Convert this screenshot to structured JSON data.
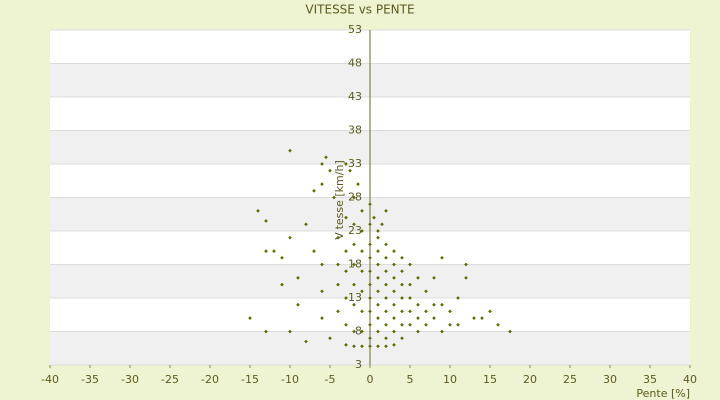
{
  "chart_data": {
    "type": "scatter",
    "title": "VITESSE vs PENTE",
    "x_label": "Pente [%]",
    "y_label": "Vitesse [km/h]",
    "color": "#5f6b00",
    "grid": true,
    "xlim": [
      -40,
      40
    ],
    "xticks": [
      -40,
      -35,
      -30,
      -25,
      -20,
      -15,
      -10,
      -5,
      0,
      5,
      10,
      15,
      20,
      25,
      30,
      35,
      40
    ],
    "ylim": [
      3,
      53
    ],
    "yticks": [
      3,
      8,
      13,
      18,
      23,
      28,
      33,
      38,
      43,
      48,
      53
    ],
    "series": [
      {
        "name": "Vitesse",
        "x": [
          -14,
          -13,
          -10,
          -13,
          -10,
          -8,
          -12,
          -11,
          -11,
          -9,
          -8,
          -7,
          -6,
          -5.5,
          -5,
          -6,
          -4.5,
          -3,
          -2.5,
          -1.5,
          -2,
          -1,
          0,
          0.5,
          1,
          1.5,
          2,
          -7,
          -6,
          -6,
          -6,
          -5,
          -4,
          -4,
          -4,
          -4,
          -3,
          -3,
          -3,
          -3,
          -3,
          -3,
          -2,
          -2,
          -2,
          -2,
          -2,
          -2,
          -2,
          -1,
          -1,
          -1,
          -1,
          -1,
          -1,
          -1,
          0,
          0,
          0,
          0,
          0,
          0,
          0,
          0,
          0,
          0,
          1,
          1,
          1,
          1,
          1,
          1,
          1,
          1,
          1,
          2,
          2,
          2,
          2,
          2,
          2,
          2,
          2,
          2,
          3,
          3,
          3,
          3,
          3,
          3,
          3,
          3,
          4,
          4,
          4,
          4,
          4,
          4,
          4,
          5,
          5,
          5,
          5,
          5,
          6,
          6,
          6,
          6,
          7,
          7,
          7,
          8,
          8,
          8,
          9,
          9,
          9,
          10,
          10,
          11,
          11,
          12,
          12,
          13,
          14,
          15,
          16,
          17.5,
          -15,
          -13,
          -10,
          -9
        ],
        "values": [
          26,
          24.5,
          35,
          8,
          8,
          6.5,
          20,
          19,
          15,
          12,
          24,
          29,
          33,
          34,
          32,
          30,
          28,
          33,
          32,
          30,
          28,
          26,
          27,
          25,
          23,
          24,
          26,
          20,
          18,
          14,
          10,
          7,
          22,
          18,
          15,
          11,
          6,
          25,
          20,
          17,
          13,
          9,
          24,
          21,
          18,
          15,
          12,
          8,
          5.8,
          23,
          20,
          17,
          14,
          11,
          8,
          5.8,
          24,
          21,
          19,
          17,
          15,
          13,
          11,
          9,
          7,
          5.8,
          22,
          20,
          18,
          16,
          14,
          12,
          10,
          8,
          5.8,
          21,
          19,
          17,
          15,
          13,
          11,
          9,
          7,
          5.8,
          20,
          18,
          16,
          14,
          12,
          10,
          8,
          6,
          19,
          17,
          15,
          13,
          11,
          9,
          7,
          18,
          15,
          13,
          11,
          9,
          16,
          12,
          10,
          8,
          14,
          11,
          9,
          16,
          12,
          10,
          19,
          12,
          8,
          11,
          9,
          13,
          9,
          18,
          16,
          10,
          10,
          11,
          9,
          8,
          10,
          20,
          22,
          16
        ]
      }
    ]
  }
}
